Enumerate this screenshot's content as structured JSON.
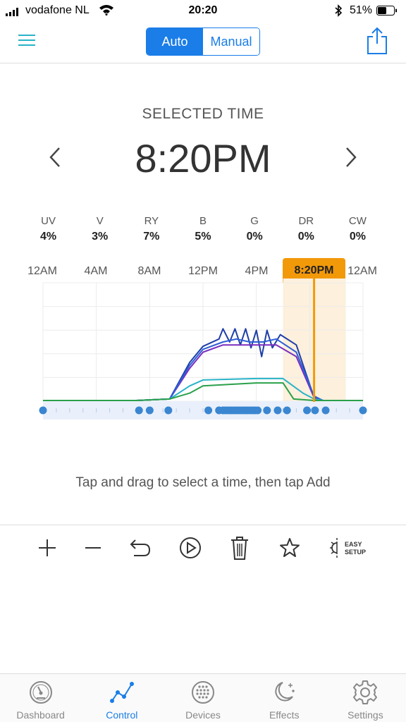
{
  "status_bar": {
    "carrier": "vodafone NL",
    "time": "20:20",
    "battery": "51%"
  },
  "nav": {
    "mode_options": [
      "Auto",
      "Manual"
    ],
    "active_mode": "Auto"
  },
  "selected": {
    "label": "SELECTED TIME",
    "time": "8:20PM"
  },
  "channels": [
    {
      "name": "UV",
      "value": "4%"
    },
    {
      "name": "V",
      "value": "3%"
    },
    {
      "name": "RY",
      "value": "7%"
    },
    {
      "name": "B",
      "value": "5%"
    },
    {
      "name": "G",
      "value": "0%"
    },
    {
      "name": "DR",
      "value": "0%"
    },
    {
      "name": "CW",
      "value": "0%"
    }
  ],
  "time_axis": [
    "12AM",
    "4AM",
    "8AM",
    "12PM",
    "4PM",
    "12AM"
  ],
  "time_badge": "8:20PM",
  "hint": "Tap and drag to select a time, then tap Add",
  "toolbar": {
    "easy_setup_line1": "EASY",
    "easy_setup_line2": "SETUP"
  },
  "tabs": [
    {
      "label": "Dashboard",
      "icon": "dashboard-icon"
    },
    {
      "label": "Control",
      "icon": "control-icon"
    },
    {
      "label": "Devices",
      "icon": "devices-icon"
    },
    {
      "label": "Effects",
      "icon": "effects-icon"
    },
    {
      "label": "Settings",
      "icon": "settings-icon"
    }
  ],
  "active_tab": "Control",
  "colors": {
    "accent": "#1a7de8",
    "highlight": "#f2990a"
  },
  "chart_data": {
    "type": "line",
    "x_unit": "hour",
    "xlim": [
      0,
      24
    ],
    "ylim": [
      0,
      100
    ],
    "selected_hour": 20.33,
    "series": [
      {
        "color": "#1f3fa8",
        "x": [
          0,
          7,
          9.5,
          11,
          12,
          13.2,
          13.5,
          14,
          14.4,
          14.8,
          15.2,
          15.6,
          16,
          16.4,
          16.8,
          17.2,
          17.8,
          19,
          20.33,
          21,
          24
        ],
        "y": [
          0,
          0,
          1,
          26,
          37,
          42,
          49,
          40,
          49,
          38,
          49,
          36,
          48,
          30,
          48,
          36,
          45,
          38,
          2,
          0,
          0
        ]
      },
      {
        "color": "#7b2fbe",
        "x": [
          0,
          7,
          9.5,
          11,
          12,
          13.5,
          14.5,
          15.5,
          16.5,
          17.5,
          19,
          20.33,
          21,
          24
        ],
        "y": [
          0,
          0,
          1,
          22,
          33,
          38,
          38,
          38,
          38,
          38,
          30,
          2,
          0,
          0
        ]
      },
      {
        "color": "#2d5fd6",
        "x": [
          0,
          7,
          9.5,
          11,
          12,
          13.5,
          14.5,
          15.5,
          16.5,
          17.5,
          19,
          20.33,
          21,
          24
        ],
        "y": [
          0,
          0,
          1,
          24,
          35,
          40,
          42,
          40,
          40,
          42,
          33,
          3,
          0,
          0
        ]
      },
      {
        "color": "#29b3c8",
        "x": [
          0,
          7,
          9.5,
          11,
          12,
          16,
          18,
          19.5,
          20.33,
          21,
          24
        ],
        "y": [
          0,
          0,
          1,
          10,
          14,
          15,
          15,
          5,
          1,
          0,
          0
        ]
      },
      {
        "color": "#2aa04a",
        "x": [
          0,
          7,
          9.5,
          11,
          12,
          16,
          18,
          18.8,
          20.33,
          21,
          24
        ],
        "y": [
          0,
          0,
          1,
          5,
          10,
          12,
          12,
          1,
          0,
          0,
          0
        ]
      }
    ],
    "keyframes_hours": [
      0,
      7.2,
      8,
      9.4,
      12.4,
      13.2,
      13.5,
      13.7,
      13.9,
      14.1,
      14.3,
      14.5,
      14.7,
      14.9,
      15.1,
      15.3,
      15.5,
      15.7,
      15.9,
      16.1,
      16.8,
      17.6,
      18.3,
      19.8,
      20.4,
      21.2,
      24
    ]
  }
}
